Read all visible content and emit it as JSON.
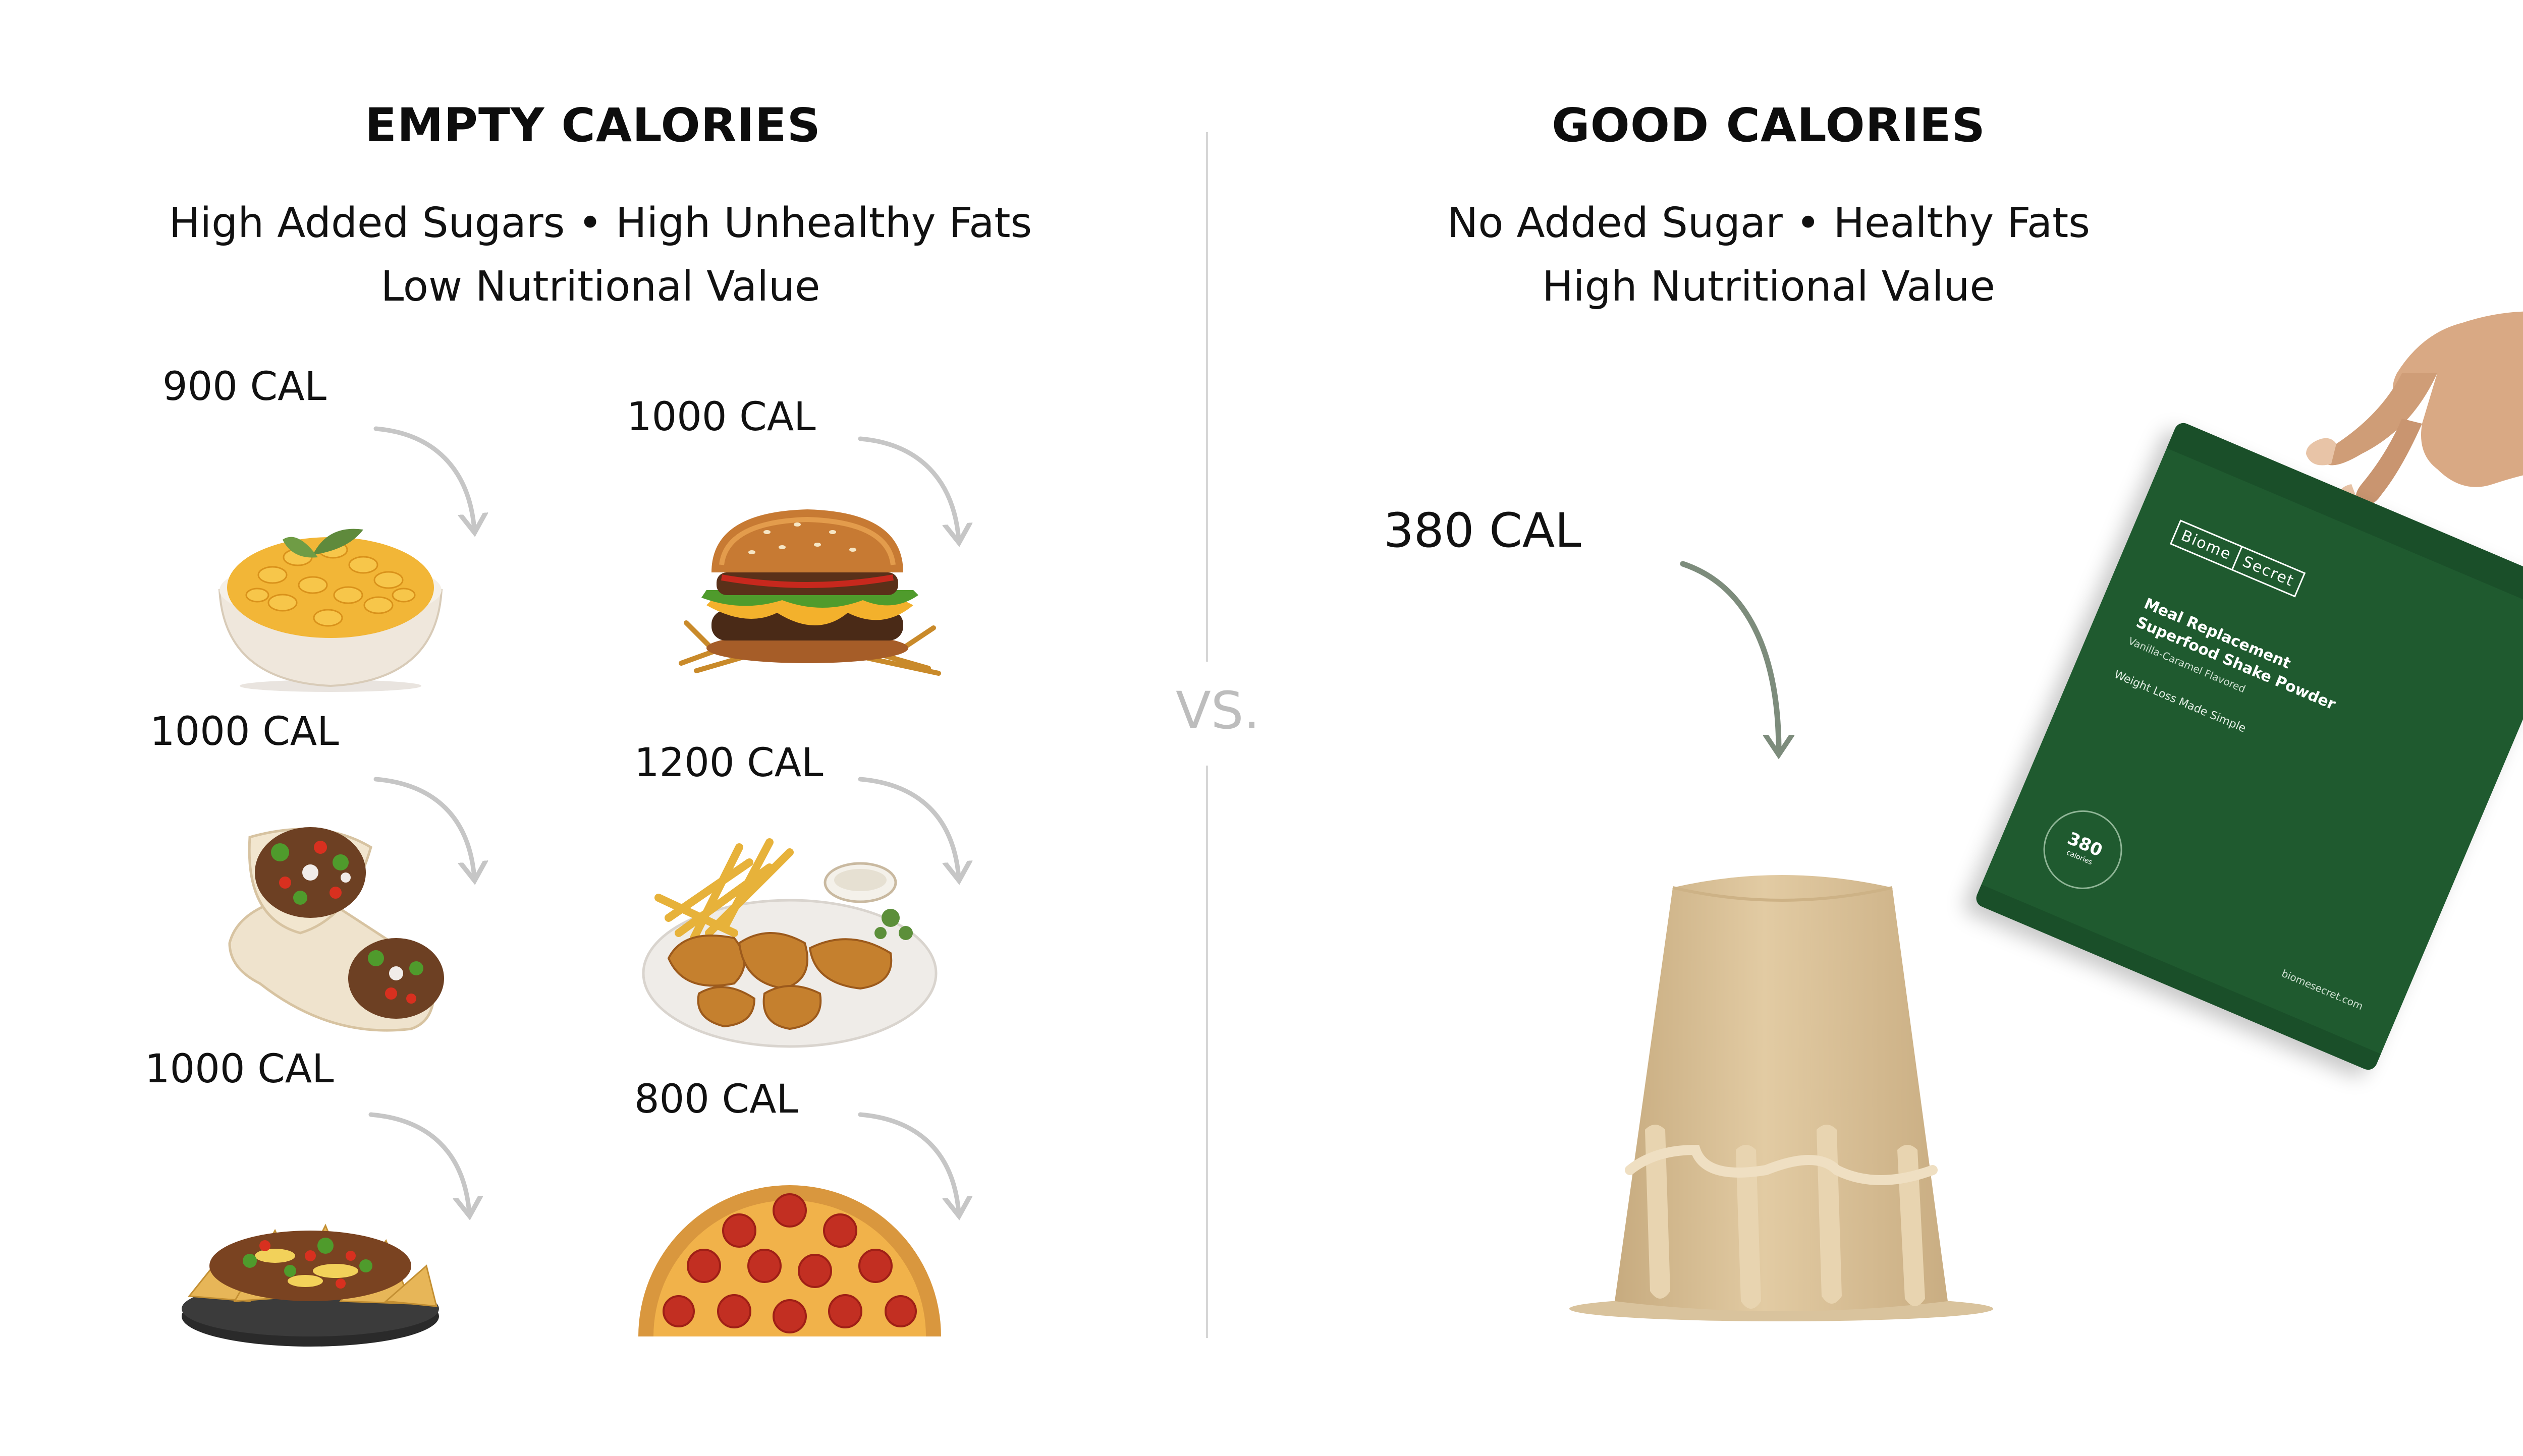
{
  "left": {
    "title": "EMPTY CALORIES",
    "sub_line1": "High Added Sugars • High Unhealthy Fats",
    "sub_line2": "Low Nutritional Value",
    "items": [
      {
        "calories": "900 CAL",
        "food": "mac-and-cheese"
      },
      {
        "calories": "1000 CAL",
        "food": "burger-and-fries"
      },
      {
        "calories": "1000 CAL",
        "food": "burrito"
      },
      {
        "calories": "1200 CAL",
        "food": "fried-chicken-and-fries"
      },
      {
        "calories": "1000 CAL",
        "food": "nachos"
      },
      {
        "calories": "800 CAL",
        "food": "pepperoni-pizza"
      }
    ]
  },
  "center": {
    "vs_label": "VS."
  },
  "right": {
    "title": "GOOD CALORIES",
    "sub_line1": "No Added Sugar • Healthy Fats",
    "sub_line2": "High Nutritional Value",
    "calories": "380 CAL",
    "pouch": {
      "brand_left": "Biome",
      "brand_right": "Secret",
      "product_line1": "Meal Replacement",
      "product_line2": "Superfood Shake Powder",
      "flavor": "Vanilla-Caramel Flavored",
      "tagline": "Weight Loss Made Simple",
      "badge_number": "380",
      "badge_unit": "calories",
      "website": "biomesecret.com"
    }
  },
  "colors": {
    "left_arrow": "#c6c6c6",
    "right_arrow": "#7d8c7c",
    "pouch_green": "#1f5a2f",
    "shake": "#d8c09a",
    "divider": "#d6d6d6"
  }
}
